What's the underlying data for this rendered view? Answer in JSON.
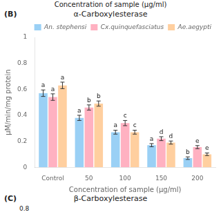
{
  "chart_data": {
    "type": "bar",
    "title": "α-Carboxylesterase",
    "xlabel": "Concentration of sample (μg/ml)",
    "ylabel": "μM/min/mg protein",
    "annotations": [
      "Concentration of sample (μg/ml)",
      "(B)",
      "(C)",
      "β-Carboxylesterase",
      "0.8"
    ],
    "categories": [
      "Control",
      "50",
      "100",
      "150",
      "200"
    ],
    "series": [
      {
        "name": "An. stephensi",
        "values": [
          0.57,
          0.38,
          0.27,
          0.17,
          0.07
        ],
        "errors": [
          0.025,
          0.02,
          0.015,
          0.012,
          0.01
        ],
        "labels": [
          "a",
          "a",
          "a",
          "a",
          "b"
        ]
      },
      {
        "name": "Cx.quinquefasciatus",
        "values": [
          0.54,
          0.46,
          0.34,
          0.22,
          0.155
        ],
        "errors": [
          0.025,
          0.02,
          0.02,
          0.015,
          0.012
        ],
        "labels": [
          "a",
          "b",
          "c",
          "d",
          "e"
        ]
      },
      {
        "name": "Ae.aegypti",
        "values": [
          0.63,
          0.49,
          0.27,
          0.19,
          0.1
        ],
        "errors": [
          0.025,
          0.02,
          0.015,
          0.012,
          0.01
        ],
        "labels": [
          "a",
          "b",
          "c",
          "d",
          "e"
        ]
      }
    ],
    "ylim": [
      0.0,
      1.0
    ],
    "yticks": [
      0.0,
      0.2,
      0.4,
      0.6,
      0.8,
      1.0
    ],
    "grid": false,
    "legend": "upper right"
  }
}
